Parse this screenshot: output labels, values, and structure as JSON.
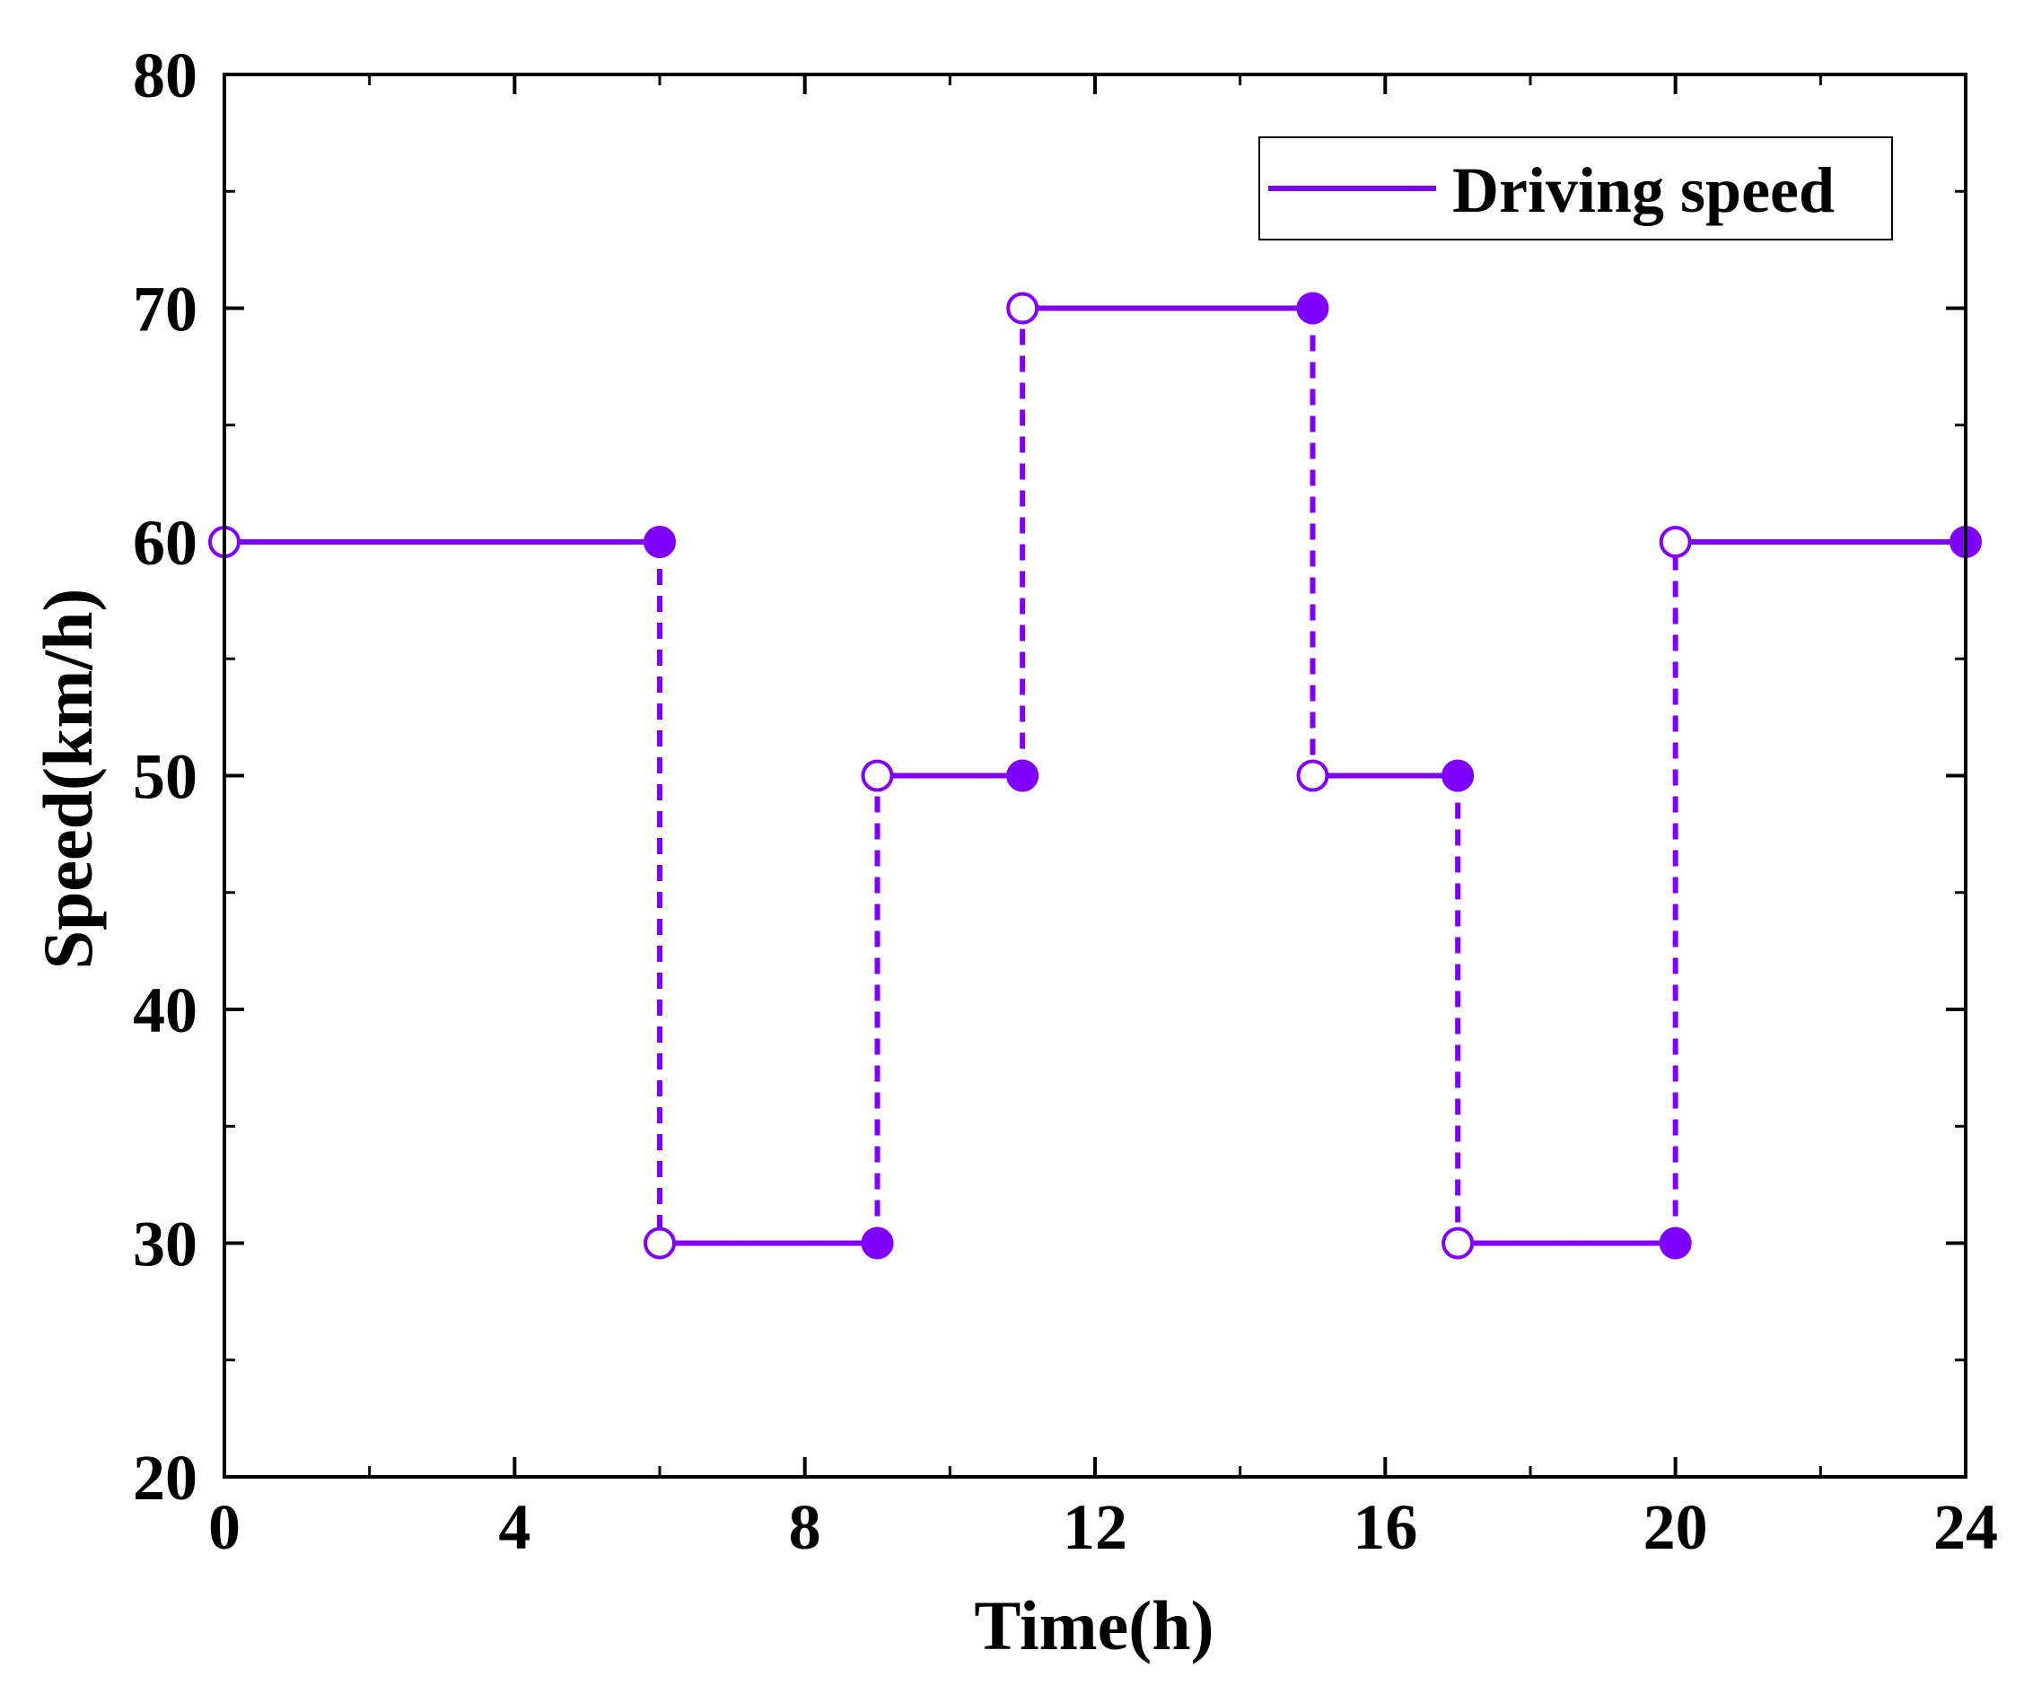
{
  "chart_data": {
    "type": "line",
    "title": "",
    "xlabel": "Time(h)",
    "ylabel": "Speed(km/h)",
    "xlim": [
      0,
      24
    ],
    "ylim": [
      20,
      80
    ],
    "x_ticks": [
      0,
      4,
      8,
      12,
      16,
      20,
      24
    ],
    "x_tick_labels": [
      "0",
      "4",
      "8",
      "12",
      "16",
      "20",
      "24"
    ],
    "x_minor_step": 2,
    "y_ticks": [
      20,
      30,
      40,
      50,
      60,
      70,
      80
    ],
    "y_tick_labels": [
      "20",
      "30",
      "40",
      "50",
      "60",
      "70",
      "80"
    ],
    "y_minor_step": 5,
    "grid": false,
    "legend_position": "top-right",
    "series": [
      {
        "name": "Driving speed",
        "color": "#8000ff",
        "segments": [
          {
            "x_start": 0,
            "x_end": 6,
            "value": 60
          },
          {
            "x_start": 6,
            "x_end": 9,
            "value": 30
          },
          {
            "x_start": 9,
            "x_end": 11,
            "value": 50
          },
          {
            "x_start": 11,
            "x_end": 15,
            "value": 70
          },
          {
            "x_start": 15,
            "x_end": 17,
            "value": 50
          },
          {
            "x_start": 17,
            "x_end": 20,
            "value": 30
          },
          {
            "x_start": 20,
            "x_end": 24,
            "value": 60
          }
        ]
      }
    ]
  }
}
